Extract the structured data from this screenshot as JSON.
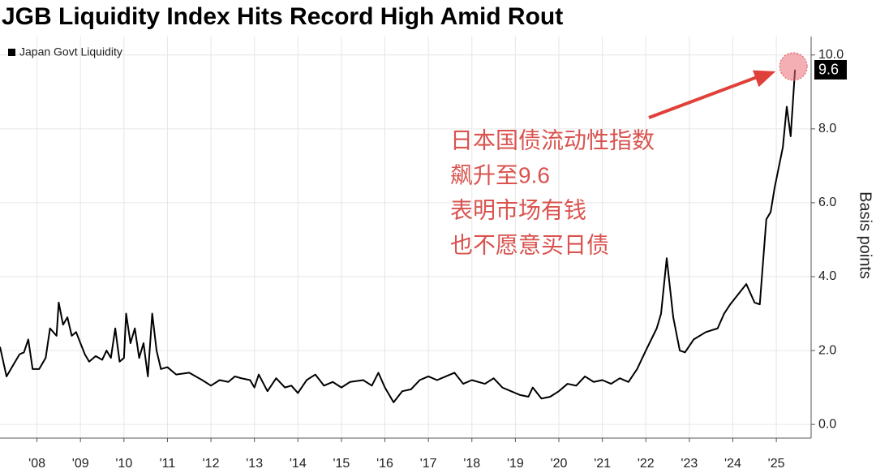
{
  "chart_data": {
    "type": "line",
    "title": "JGB Liquidity Index Hits Record High Amid Rout",
    "y_label": "Basis points",
    "annotations": [
      "日本国债流动性指数",
      "飙升至9.6",
      "表明市场有钱",
      "也不愿意买日债"
    ],
    "legend": "top-left",
    "grid": true,
    "xlim": [
      2007.15,
      2025.8
    ],
    "ylim": [
      -0.37,
      10.5
    ],
    "xticks": [
      {
        "value": 2008,
        "label": "'08"
      },
      {
        "value": 2009,
        "label": "'09"
      },
      {
        "value": 2010,
        "label": "'10"
      },
      {
        "value": 2011,
        "label": "'11"
      },
      {
        "value": 2012,
        "label": "'12"
      },
      {
        "value": 2013,
        "label": "'13"
      },
      {
        "value": 2014,
        "label": "'14"
      },
      {
        "value": 2015,
        "label": "'15"
      },
      {
        "value": 2016,
        "label": "'16"
      },
      {
        "value": 2017,
        "label": "'17"
      },
      {
        "value": 2018,
        "label": "'18"
      },
      {
        "value": 2019,
        "label": "'19"
      },
      {
        "value": 2020,
        "label": "'20"
      },
      {
        "value": 2021,
        "label": "'21"
      },
      {
        "value": 2022,
        "label": "'22"
      },
      {
        "value": 2023,
        "label": "'23"
      },
      {
        "value": 2024,
        "label": "'24"
      },
      {
        "value": 2025,
        "label": "'25"
      }
    ],
    "yticks": [
      {
        "value": 0,
        "label": "0.0"
      },
      {
        "value": 2,
        "label": "2.0"
      },
      {
        "value": 4,
        "label": "4.0"
      },
      {
        "value": 6,
        "label": "6.0"
      },
      {
        "value": 8,
        "label": "8.0"
      },
      {
        "value": 10,
        "label": "10.0"
      }
    ],
    "x": [
      2007.15,
      2007.3,
      2007.45,
      2007.6,
      2007.7,
      2007.8,
      2007.9,
      2008.05,
      2008.2,
      2008.3,
      2008.45,
      2008.5,
      2008.6,
      2008.7,
      2008.8,
      2008.9,
      2009.0,
      2009.1,
      2009.2,
      2009.35,
      2009.5,
      2009.6,
      2009.7,
      2009.8,
      2009.9,
      2010.0,
      2010.05,
      2010.15,
      2010.25,
      2010.35,
      2010.45,
      2010.55,
      2010.65,
      2010.75,
      2010.85,
      2011.0,
      2011.2,
      2011.5,
      2011.8,
      2012.0,
      2012.2,
      2012.4,
      2012.55,
      2012.7,
      2012.9,
      2013.0,
      2013.1,
      2013.3,
      2013.5,
      2013.7,
      2013.85,
      2014.0,
      2014.2,
      2014.4,
      2014.6,
      2014.8,
      2015.0,
      2015.2,
      2015.5,
      2015.7,
      2015.85,
      2016.0,
      2016.2,
      2016.4,
      2016.6,
      2016.8,
      2017.0,
      2017.2,
      2017.4,
      2017.6,
      2017.8,
      2018.0,
      2018.3,
      2018.5,
      2018.7,
      2018.9,
      2019.1,
      2019.3,
      2019.4,
      2019.6,
      2019.8,
      2020.0,
      2020.2,
      2020.4,
      2020.6,
      2020.8,
      2021.0,
      2021.2,
      2021.4,
      2021.6,
      2021.8,
      2022.0,
      2022.25,
      2022.35,
      2022.48,
      2022.63,
      2022.78,
      2022.9,
      2023.1,
      2023.38,
      2023.65,
      2023.8,
      2023.94,
      2024.31,
      2024.5,
      2024.62,
      2024.77,
      2024.87,
      2024.96,
      2025.15,
      2025.24,
      2025.33,
      2025.43
    ],
    "series": [
      {
        "name": "Japan Govt Liquidity",
        "color": "#000000",
        "values": [
          2.1,
          1.3,
          1.6,
          1.9,
          1.95,
          2.3,
          1.5,
          1.5,
          1.8,
          2.6,
          2.4,
          3.3,
          2.7,
          2.9,
          2.4,
          2.5,
          2.2,
          1.9,
          1.7,
          1.85,
          1.75,
          2.0,
          1.8,
          2.6,
          1.7,
          1.8,
          3.0,
          2.2,
          2.6,
          1.8,
          2.2,
          1.3,
          3.0,
          2.0,
          1.5,
          1.55,
          1.35,
          1.4,
          1.2,
          1.05,
          1.2,
          1.15,
          1.3,
          1.25,
          1.2,
          1.0,
          1.35,
          0.9,
          1.25,
          1.0,
          1.05,
          0.85,
          1.2,
          1.35,
          1.05,
          1.15,
          1.0,
          1.15,
          1.2,
          1.05,
          1.4,
          1.0,
          0.6,
          0.9,
          0.95,
          1.2,
          1.3,
          1.2,
          1.3,
          1.4,
          1.1,
          1.2,
          1.1,
          1.25,
          1.0,
          0.9,
          0.8,
          0.75,
          1.0,
          0.7,
          0.75,
          0.9,
          1.1,
          1.05,
          1.3,
          1.15,
          1.2,
          1.1,
          1.25,
          1.15,
          1.5,
          2.0,
          2.6,
          3.0,
          4.5,
          2.9,
          2.0,
          1.95,
          2.3,
          2.5,
          2.6,
          3.0,
          3.25,
          3.8,
          3.3,
          3.25,
          5.55,
          5.75,
          6.4,
          7.5,
          8.6,
          7.8,
          9.6
        ]
      }
    ]
  }
}
